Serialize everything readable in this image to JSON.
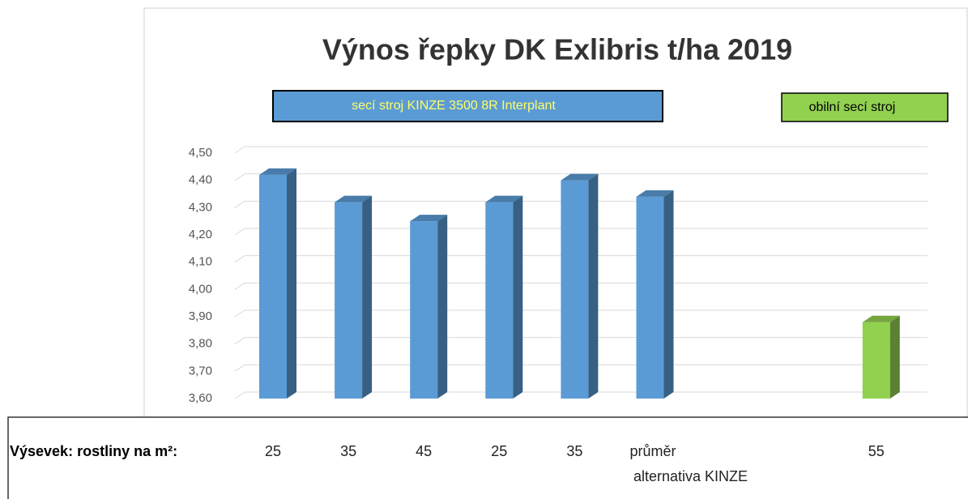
{
  "chart_data": {
    "type": "bar3d",
    "title": "Výnos řepky DK Exlibris t/ha 2019",
    "x_label": "Výsevek: rostliny na m²:",
    "categories": [
      "25",
      "35",
      "45",
      "25",
      "35",
      [
        "průměr",
        "alternativa KINZE"
      ],
      null,
      null,
      "55"
    ],
    "series": [
      {
        "name": "secí stroj KINZE 3500 8R Interplant",
        "color": "#5b9bd5",
        "values": [
          4.42,
          4.32,
          4.25,
          4.32,
          4.4,
          4.34,
          null,
          null,
          null
        ]
      },
      {
        "name": "obilní secí stroj",
        "color": "#92d050",
        "values": [
          null,
          null,
          null,
          null,
          null,
          null,
          null,
          null,
          3.88
        ]
      }
    ],
    "ylim": [
      3.6,
      4.5
    ],
    "yticks": [
      {
        "value": 3.6,
        "label": "3,60"
      },
      {
        "value": 3.7,
        "label": "3,70"
      },
      {
        "value": 3.8,
        "label": "3,80"
      },
      {
        "value": 3.9,
        "label": "3,90"
      },
      {
        "value": 4.0,
        "label": "4,00"
      },
      {
        "value": 4.1,
        "label": "4,10"
      },
      {
        "value": 4.2,
        "label": "4,20"
      },
      {
        "value": 4.3,
        "label": "4,30"
      },
      {
        "value": 4.4,
        "label": "4,40"
      },
      {
        "value": 4.5,
        "label": "4,50"
      }
    ],
    "grid": true
  }
}
